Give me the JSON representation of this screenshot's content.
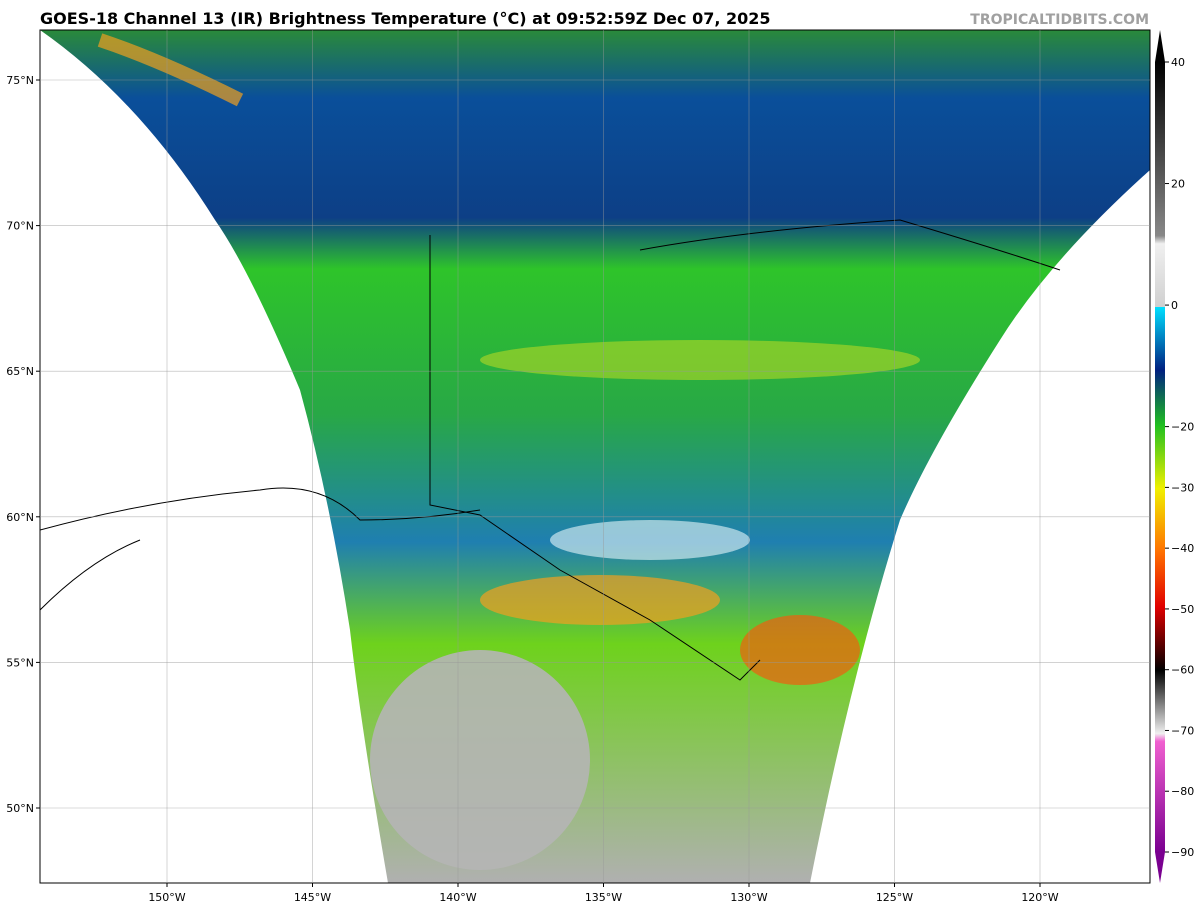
{
  "header": {
    "title": "GOES-18 Channel 13 (IR) Brightness Temperature (°C) at 09:52:59Z Dec 07, 2025",
    "source": "TROPICALTIDBITS.COM"
  },
  "map": {
    "lon_ticks": [
      {
        "value": -150,
        "label": "150°W"
      },
      {
        "value": -145,
        "label": "145°W"
      },
      {
        "value": -140,
        "label": "140°W"
      },
      {
        "value": -135,
        "label": "135°W"
      },
      {
        "value": -130,
        "label": "130°W"
      },
      {
        "value": -125,
        "label": "125°W"
      },
      {
        "value": -120,
        "label": "120°W"
      }
    ],
    "lat_ticks": [
      {
        "value": 75,
        "label": "75°N"
      },
      {
        "value": 70,
        "label": "70°N"
      },
      {
        "value": 65,
        "label": "65°N"
      },
      {
        "value": 60,
        "label": "60°N"
      },
      {
        "value": 55,
        "label": "55°N"
      },
      {
        "value": 50,
        "label": "50°N"
      }
    ]
  },
  "colorbar": {
    "ticks": [
      40,
      20,
      0,
      {
        "value": -20,
        "label": "−20"
      },
      {
        "value": -30,
        "label": "−30"
      },
      {
        "value": -40,
        "label": "−40"
      },
      {
        "value": -50,
        "label": "−50"
      },
      {
        "value": -60,
        "label": "−60"
      },
      {
        "value": -70,
        "label": "−70"
      },
      {
        "value": -80,
        "label": "−80"
      },
      {
        "value": -90,
        "label": "−90"
      }
    ]
  }
}
